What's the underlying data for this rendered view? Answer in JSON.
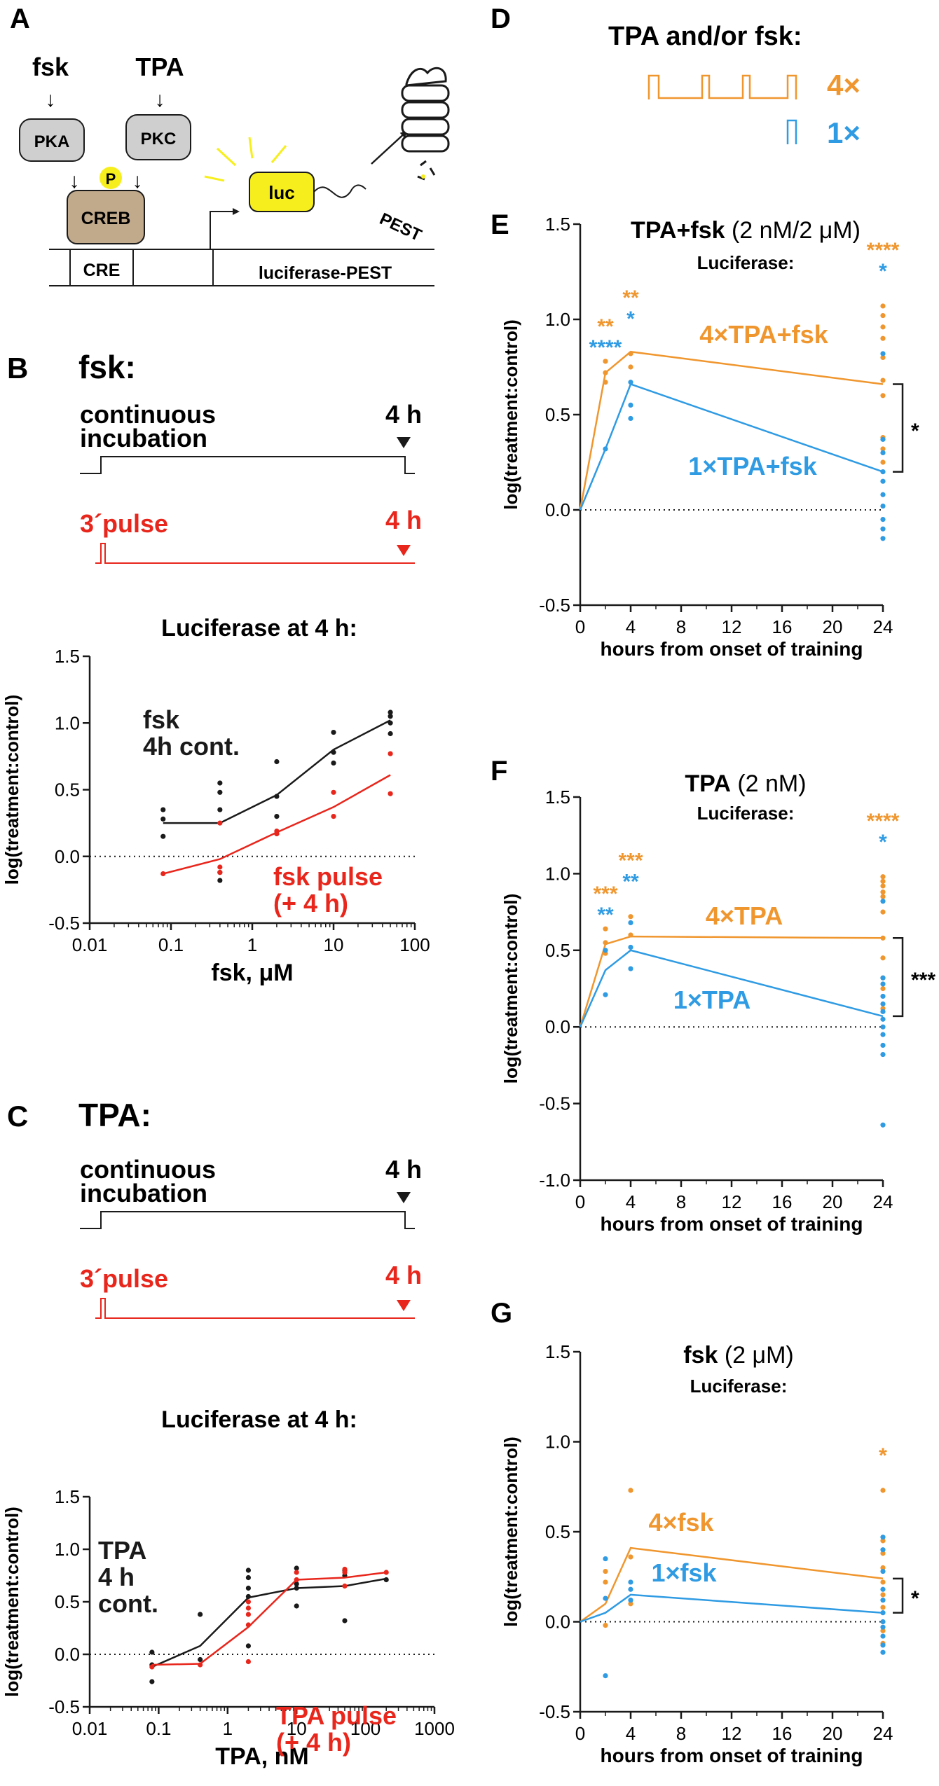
{
  "colors": {
    "black": "#1a1a1a",
    "red": "#e8261c",
    "orange": "#f0962e",
    "blue": "#2f9be3",
    "luc_yellow": "#f7ef1d",
    "pka_gray": "#cfcfcf",
    "creb_brown": "#c1a98c"
  },
  "panelA": {
    "letter": "A",
    "fsk": "fsk",
    "tpa": "TPA",
    "pka": "PKA",
    "pkc": "PKC",
    "p": "P",
    "creb": "CREB",
    "cre": "CRE",
    "luc": "luc",
    "pest": "PEST",
    "gene": "luciferase-PEST",
    "arrow_down": "↓"
  },
  "panelB": {
    "letter": "B",
    "title": "fsk:",
    "continuous_label_1": "continuous",
    "continuous_label_2": "incubation",
    "time_label_black": "4 h",
    "pulse_label": "3´pulse",
    "time_label_red": "4 h"
  },
  "panelC": {
    "letter": "C",
    "title": "TPA:",
    "continuous_label_1": "continuous",
    "continuous_label_2": "incubation",
    "time_label_black": "4 h",
    "pulse_label": "3´pulse",
    "time_label_red": "4 h"
  },
  "panelD": {
    "letter": "D",
    "title": "TPA and/or fsk:",
    "label_4x": "4×",
    "label_1x": "1×"
  },
  "chart_data": [
    {
      "id": "B",
      "type": "scatter",
      "title": "Luciferase at 4 h:",
      "xlabel": "fsk, μM",
      "ylabel": "log(treatment:control)",
      "xscale": "log",
      "xlim": [
        0.01,
        100
      ],
      "ylim": [
        -0.5,
        1.5
      ],
      "xticks": [
        "0.01",
        "0.1",
        "1",
        "10",
        "100"
      ],
      "yticks": [
        "-0.5",
        "0.0",
        "0.5",
        "1.0",
        "1.5"
      ],
      "annotations": [
        {
          "lines": [
            "fsk",
            "4h cont."
          ],
          "color": "black"
        },
        {
          "lines": [
            "fsk pulse",
            "(+ 4 h)"
          ],
          "color": "red"
        }
      ],
      "series": [
        {
          "name": "fsk 4h cont.",
          "color": "black",
          "line": {
            "x": [
              0.08,
              0.4,
              2,
              10,
              50
            ],
            "y": [
              0.25,
              0.25,
              0.46,
              0.8,
              1.02
            ]
          },
          "points": {
            "x": [
              0.08,
              0.08,
              0.08,
              0.4,
              0.4,
              0.4,
              0.4,
              0.4,
              2,
              2,
              2,
              2,
              10,
              10,
              10,
              50,
              50,
              50,
              50
            ],
            "y": [
              0.35,
              0.28,
              0.15,
              0.55,
              0.48,
              0.35,
              -0.12,
              -0.18,
              0.71,
              0.45,
              0.3,
              0.17,
              0.93,
              0.78,
              0.7,
              1.08,
              1.05,
              1.0,
              0.92
            ]
          }
        },
        {
          "name": "fsk pulse (+ 4 h)",
          "color": "red",
          "line": {
            "x": [
              0.08,
              0.4,
              2,
              10,
              50
            ],
            "y": [
              -0.13,
              -0.02,
              0.18,
              0.37,
              0.61
            ]
          },
          "points": {
            "x": [
              0.08,
              0.4,
              0.4,
              0.4,
              2,
              2,
              10,
              10,
              50,
              50
            ],
            "y": [
              -0.13,
              0.25,
              -0.08,
              -0.12,
              0.19,
              0.17,
              0.48,
              0.3,
              0.77,
              0.47
            ]
          }
        }
      ]
    },
    {
      "id": "C",
      "type": "scatter",
      "title": "Luciferase at 4 h:",
      "xlabel": "TPA, nM",
      "ylabel": "log(treatment:control)",
      "xscale": "log",
      "xlim": [
        0.01,
        1000
      ],
      "ylim": [
        -0.5,
        1.5
      ],
      "xticks": [
        "0.01",
        "0.1",
        "1",
        "10",
        "100",
        "1000"
      ],
      "yticks": [
        "-0.5",
        "0.0",
        "0.5",
        "1.0",
        "1.5"
      ],
      "annotations": [
        {
          "lines": [
            "TPA",
            "4 h",
            "cont."
          ],
          "color": "black"
        },
        {
          "lines": [
            "TPA pulse",
            "(+ 4 h)"
          ],
          "color": "red"
        }
      ],
      "series": [
        {
          "name": "TPA 4 h cont.",
          "color": "black",
          "line": {
            "x": [
              0.08,
              0.4,
              2,
              10,
              50,
              200
            ],
            "y": [
              -0.12,
              0.08,
              0.54,
              0.63,
              0.65,
              0.72
            ]
          },
          "points": {
            "x": [
              0.08,
              0.08,
              0.08,
              0.4,
              0.4,
              2,
              2,
              2,
              2,
              2,
              10,
              10,
              10,
              10,
              50,
              50,
              50,
              200
            ],
            "y": [
              0.02,
              -0.1,
              -0.26,
              0.38,
              -0.05,
              0.8,
              0.73,
              0.63,
              0.55,
              0.08,
              0.82,
              0.67,
              0.63,
              0.46,
              0.8,
              0.75,
              0.32,
              0.71
            ]
          }
        },
        {
          "name": "TPA pulse (+ 4 h)",
          "color": "red",
          "line": {
            "x": [
              0.08,
              0.4,
              2,
              10,
              50,
              200
            ],
            "y": [
              -0.1,
              -0.09,
              0.26,
              0.71,
              0.73,
              0.78
            ]
          },
          "points": {
            "x": [
              0.08,
              0.4,
              2,
              2,
              2,
              2,
              2,
              10,
              10,
              50,
              50,
              50,
              200
            ],
            "y": [
              -0.12,
              -0.1,
              0.5,
              0.44,
              0.38,
              0.28,
              -0.07,
              0.71,
              0.78,
              0.81,
              0.78,
              0.65,
              0.78
            ]
          }
        }
      ]
    },
    {
      "id": "E",
      "type": "line",
      "title_bold": "TPA+fsk",
      "title_rest": "(2 nM/2 μM)",
      "subtitle": "Luciferase:",
      "xlabel": "hours from onset of training",
      "ylabel": "log(treatment:control)",
      "xlim": [
        0,
        24
      ],
      "ylim": [
        -0.5,
        1.5
      ],
      "xticks": [
        "0",
        "4",
        "8",
        "12",
        "16",
        "20",
        "24"
      ],
      "yticks": [
        "-0.5",
        "0.0",
        "0.5",
        "1.0",
        "1.5"
      ],
      "series": [
        {
          "name": "4×TPA+fsk",
          "color": "orange",
          "line": {
            "x": [
              0,
              2,
              4,
              24
            ],
            "y": [
              0,
              0.72,
              0.83,
              0.66
            ]
          },
          "points": {
            "x": [
              2,
              2,
              2,
              4,
              4,
              24,
              24,
              24,
              24,
              24,
              24,
              24,
              24,
              24,
              24
            ],
            "y": [
              0.78,
              0.72,
              0.67,
              0.82,
              0.75,
              1.07,
              1.02,
              0.96,
              0.9,
              0.8,
              0.68,
              0.6,
              0.38,
              0.32,
              0.25
            ]
          }
        },
        {
          "name": "1×TPA+fsk",
          "color": "blue",
          "line": {
            "x": [
              0,
              2,
              4,
              24
            ],
            "y": [
              0,
              0.32,
              0.66,
              0.2
            ]
          },
          "points": {
            "x": [
              2,
              4,
              4,
              4,
              24,
              24,
              24,
              24,
              24,
              24,
              24,
              24,
              24,
              24
            ],
            "y": [
              0.32,
              0.67,
              0.55,
              0.48,
              0.82,
              0.37,
              0.3,
              0.2,
              0.15,
              0.08,
              0.02,
              -0.05,
              -0.1,
              -0.15
            ]
          }
        }
      ],
      "stars": [
        {
          "x": 2,
          "row": 1,
          "text": "**",
          "color": "orange"
        },
        {
          "x": 2,
          "row": 0,
          "text": "****",
          "color": "blue"
        },
        {
          "x": 4,
          "row": 2,
          "text": "**",
          "color": "orange"
        },
        {
          "x": 4,
          "row": 1,
          "text": "*",
          "color": "blue"
        },
        {
          "x": 24,
          "row": 2,
          "text": "****",
          "color": "orange"
        },
        {
          "x": 24,
          "row": 1,
          "text": "*",
          "color": "blue"
        }
      ],
      "bracket": {
        "y_top": 0.66,
        "y_bottom": 0.2,
        "label": "*"
      },
      "annotations": [
        {
          "text": "4×TPA+fsk",
          "color": "orange"
        },
        {
          "text": "1×TPA+fsk",
          "color": "blue"
        }
      ]
    },
    {
      "id": "F",
      "type": "line",
      "title_bold": "TPA",
      "title_rest": "(2 nM)",
      "subtitle": "Luciferase:",
      "xlabel": "hours from onset of training",
      "ylabel": "log(treatment:control)",
      "xlim": [
        0,
        24
      ],
      "ylim": [
        -1.0,
        1.5
      ],
      "xticks": [
        "0",
        "4",
        "8",
        "12",
        "16",
        "20",
        "24"
      ],
      "yticks": [
        "-1.0",
        "-0.5",
        "0.0",
        "0.5",
        "1.0",
        "1.5"
      ],
      "series": [
        {
          "name": "4×TPA",
          "color": "orange",
          "line": {
            "x": [
              0,
              2,
              4,
              24
            ],
            "y": [
              0,
              0.54,
              0.59,
              0.58
            ]
          },
          "points": {
            "x": [
              2,
              2,
              2,
              4,
              4,
              24,
              24,
              24,
              24,
              24,
              24,
              24,
              24,
              24,
              24,
              24
            ],
            "y": [
              0.64,
              0.55,
              0.48,
              0.72,
              0.6,
              0.98,
              0.95,
              0.92,
              0.88,
              0.85,
              0.75,
              0.58,
              0.45,
              0.32,
              0.25,
              0.12
            ]
          }
        },
        {
          "name": "1×TPA",
          "color": "blue",
          "line": {
            "x": [
              0,
              2,
              4,
              24
            ],
            "y": [
              0,
              0.37,
              0.5,
              0.07
            ]
          },
          "points": {
            "x": [
              2,
              2,
              4,
              4,
              4,
              24,
              24,
              24,
              24,
              24,
              24,
              24,
              24,
              24,
              24,
              24,
              24
            ],
            "y": [
              0.5,
              0.21,
              0.68,
              0.52,
              0.38,
              0.82,
              0.32,
              0.28,
              0.2,
              0.15,
              0.1,
              0.05,
              0.0,
              -0.05,
              -0.12,
              -0.18,
              -0.64
            ]
          }
        }
      ],
      "stars": [
        {
          "x": 2,
          "row": 1,
          "text": "***",
          "color": "orange"
        },
        {
          "x": 2,
          "row": 0,
          "text": "**",
          "color": "blue"
        },
        {
          "x": 4,
          "row": 2,
          "text": "***",
          "color": "orange"
        },
        {
          "x": 4,
          "row": 1,
          "text": "**",
          "color": "blue"
        },
        {
          "x": 24,
          "row": 2,
          "text": "****",
          "color": "orange"
        },
        {
          "x": 24,
          "row": 1,
          "text": "*",
          "color": "blue"
        }
      ],
      "bracket": {
        "y_top": 0.58,
        "y_bottom": 0.07,
        "label": "***"
      },
      "annotations": [
        {
          "text": "4×TPA",
          "color": "orange"
        },
        {
          "text": "1×TPA",
          "color": "blue"
        }
      ]
    },
    {
      "id": "G",
      "type": "line",
      "title_bold": "fsk",
      "title_rest": "(2 μM)",
      "subtitle": "Luciferase:",
      "xlabel": "hours from onset of training",
      "ylabel": "log(treatment:control)",
      "xlim": [
        0,
        24
      ],
      "ylim": [
        -0.5,
        1.5
      ],
      "xticks": [
        "0",
        "4",
        "8",
        "12",
        "16",
        "20",
        "24"
      ],
      "yticks": [
        "-0.5",
        "0.0",
        "0.5",
        "1.0",
        "1.5"
      ],
      "series": [
        {
          "name": "4×fsk",
          "color": "orange",
          "line": {
            "x": [
              0,
              2,
              4,
              24
            ],
            "y": [
              0,
              0.1,
              0.41,
              0.24
            ]
          },
          "points": {
            "x": [
              2,
              2,
              2,
              4,
              4,
              4,
              24,
              24,
              24,
              24,
              24,
              24,
              24,
              24,
              24
            ],
            "y": [
              0.28,
              0.22,
              -0.02,
              0.73,
              0.36,
              0.1,
              0.73,
              0.45,
              0.38,
              0.3,
              0.22,
              0.15,
              0.08,
              -0.05,
              -0.12
            ]
          }
        },
        {
          "name": "1×fsk",
          "color": "blue",
          "line": {
            "x": [
              0,
              2,
              4,
              24
            ],
            "y": [
              0,
              0.05,
              0.15,
              0.05
            ]
          },
          "points": {
            "x": [
              2,
              2,
              2,
              4,
              4,
              4,
              24,
              24,
              24,
              24,
              24,
              24,
              24,
              24,
              24,
              24,
              24
            ],
            "y": [
              0.35,
              0.13,
              -0.3,
              0.22,
              0.18,
              0.12,
              0.47,
              0.4,
              0.28,
              0.18,
              0.12,
              0.05,
              0.0,
              -0.03,
              -0.08,
              -0.13,
              -0.17
            ]
          }
        }
      ],
      "stars": [
        {
          "x": 24,
          "row": 1,
          "text": "*",
          "color": "orange"
        }
      ],
      "bracket": {
        "y_top": 0.24,
        "y_bottom": 0.05,
        "label": "*"
      },
      "annotations": [
        {
          "text": "4×fsk",
          "color": "orange"
        },
        {
          "text": "1×fsk",
          "color": "blue"
        }
      ]
    }
  ]
}
